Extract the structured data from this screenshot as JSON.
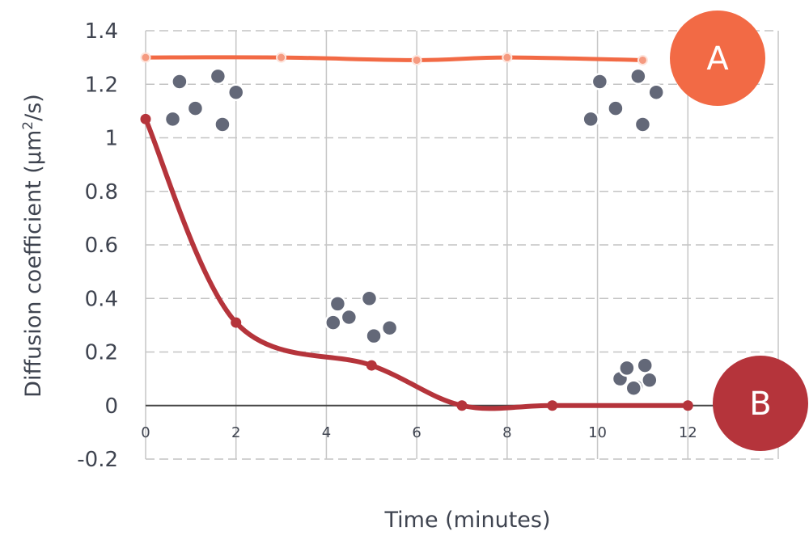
{
  "chart_data": {
    "type": "line",
    "title": "",
    "xlabel": "Time (minutes)",
    "ylabel_main": "Diffusion coefficient (μm",
    "ylabel_sup": "2",
    "ylabel_tail": "/s)",
    "xlim": [
      0,
      14
    ],
    "ylim": [
      -0.2,
      1.4
    ],
    "x_ticks": [
      0,
      2,
      4,
      6,
      8,
      10,
      12
    ],
    "x_tick_labels": [
      "0",
      "2",
      "4",
      "6",
      "8",
      "10",
      "12"
    ],
    "y_ticks": [
      -0.2,
      0,
      0.2,
      0.4,
      0.6,
      0.8,
      1,
      1.2,
      1.4
    ],
    "y_tick_labels": [
      "-0.2",
      "0",
      "0.2",
      "0.4",
      "0.6",
      "0.8",
      "1",
      "1.2",
      "1.4"
    ],
    "grid": true,
    "series": [
      {
        "name": "A",
        "color": "#f26a45",
        "x": [
          0,
          3,
          6,
          8,
          11
        ],
        "y": [
          1.3,
          1.3,
          1.29,
          1.3,
          1.29
        ]
      },
      {
        "name": "B",
        "color": "#b5343b",
        "x": [
          0,
          2,
          5,
          7,
          9,
          12
        ],
        "y": [
          1.07,
          0.31,
          0.15,
          0.0,
          0.0,
          0.0
        ]
      }
    ],
    "particle_clusters": [
      {
        "x": [
          0.6,
          0.75,
          1.1,
          1.6,
          1.7,
          2.0
        ],
        "y": [
          1.07,
          1.21,
          1.11,
          1.23,
          1.05,
          1.17
        ]
      },
      {
        "x": [
          9.85,
          10.05,
          10.4,
          10.9,
          11.0,
          11.3
        ],
        "y": [
          1.07,
          1.21,
          1.11,
          1.23,
          1.05,
          1.17
        ]
      },
      {
        "x": [
          4.15,
          4.25,
          4.5,
          4.95,
          5.05,
          5.4
        ],
        "y": [
          0.31,
          0.38,
          0.33,
          0.4,
          0.26,
          0.29
        ]
      },
      {
        "x": [
          10.5,
          10.65,
          10.85,
          11.05,
          11.15,
          10.8
        ],
        "y": [
          0.1,
          0.14,
          0.07,
          0.15,
          0.095,
          0.065
        ]
      }
    ],
    "particle_color": "#636878"
  }
}
